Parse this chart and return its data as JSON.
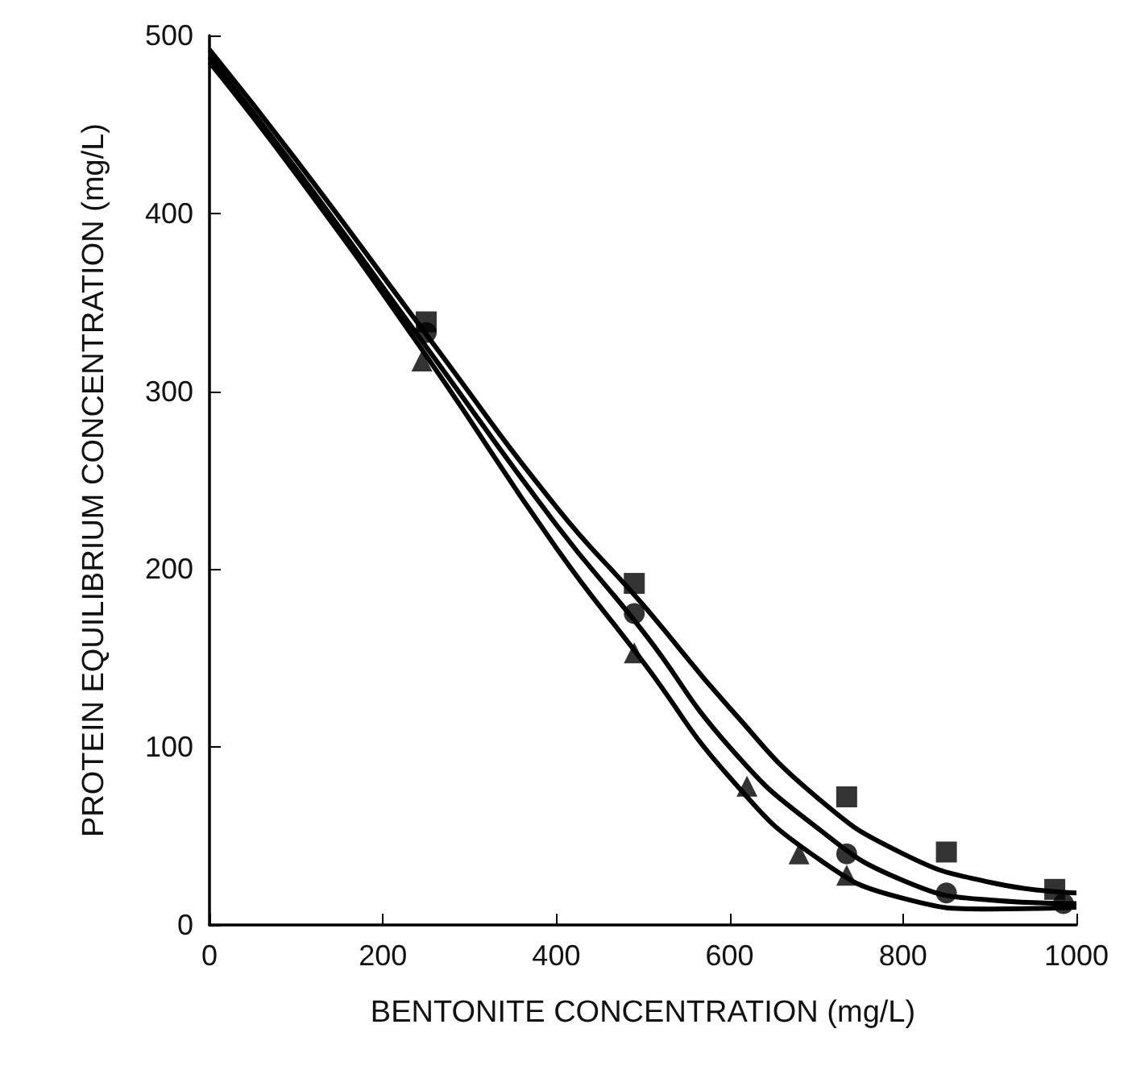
{
  "chart_data": {
    "type": "scatter",
    "xlabel": "BENTONITE CONCENTRATION (mg/L)",
    "ylabel": "PROTEIN EQUILIBRIUM CONCENTRATION (mg/L)",
    "xlim": [
      0,
      1000
    ],
    "ylim": [
      0,
      500
    ],
    "xticks": [
      0,
      200,
      400,
      600,
      800,
      1000
    ],
    "yticks": [
      0,
      100,
      200,
      300,
      400,
      500
    ],
    "grid": false,
    "series": [
      {
        "marker": "square",
        "color": "#000000",
        "x": [
          250,
          490,
          735,
          850,
          975
        ],
        "values": [
          339,
          192,
          72,
          41,
          20
        ]
      },
      {
        "marker": "circle",
        "color": "#000000",
        "x": [
          250,
          490,
          735,
          850,
          985
        ],
        "values": [
          333,
          175,
          40,
          18,
          12
        ]
      },
      {
        "marker": "triangle",
        "color": "#000000",
        "x": [
          245,
          490,
          620,
          680,
          735
        ],
        "values": [
          317,
          153,
          78,
          40,
          28
        ]
      },
      {
        "type": "line",
        "marker": "none",
        "color": "#000000",
        "x": [
          0,
          100,
          250,
          400,
          500,
          600,
          700,
          800,
          900,
          1000
        ],
        "values": [
          492,
          430,
          332,
          235,
          180,
          122,
          72,
          40,
          24,
          18
        ]
      },
      {
        "type": "line",
        "marker": "none",
        "color": "#000000",
        "x": [
          0,
          100,
          250,
          400,
          500,
          600,
          700,
          800,
          900,
          1000
        ],
        "values": [
          488,
          425,
          325,
          225,
          165,
          100,
          55,
          25,
          14,
          12
        ]
      },
      {
        "type": "line",
        "marker": "none",
        "color": "#000000",
        "x": [
          0,
          100,
          250,
          400,
          500,
          600,
          700,
          800,
          900,
          1000
        ],
        "values": [
          485,
          422,
          320,
          212,
          148,
          83,
          38,
          15,
          9,
          10
        ]
      }
    ]
  }
}
